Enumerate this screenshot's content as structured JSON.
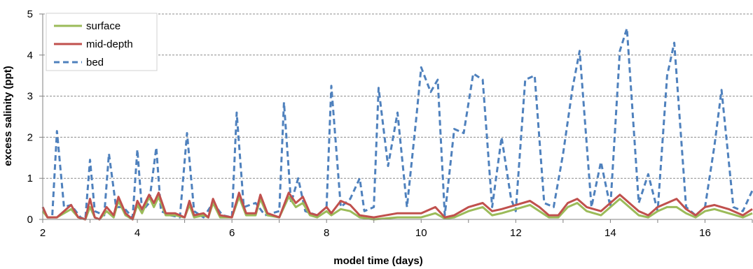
{
  "chart_data": {
    "type": "line",
    "title": "",
    "xlabel": "model time (days)",
    "ylabel": "excess salinity (ppt)",
    "xlim": [
      2,
      17
    ],
    "ylim": [
      0,
      5
    ],
    "x_ticks": [
      2,
      4,
      6,
      8,
      10,
      12,
      14,
      16
    ],
    "y_ticks": [
      0,
      1,
      2,
      3,
      4,
      5
    ],
    "grid": "horizontal dashed",
    "legend_position": "top-left",
    "series": [
      {
        "name": "surface",
        "color": "#9BBB59",
        "style": "solid",
        "points": [
          [
            2,
            0.2
          ],
          [
            2.1,
            0.05
          ],
          [
            2.3,
            0.05
          ],
          [
            2.6,
            0.25
          ],
          [
            2.75,
            0.05
          ],
          [
            2.9,
            0
          ],
          [
            3.0,
            0.3
          ],
          [
            3.1,
            0.05
          ],
          [
            3.2,
            0
          ],
          [
            3.35,
            0.2
          ],
          [
            3.5,
            0.05
          ],
          [
            3.6,
            0.45
          ],
          [
            3.75,
            0.1
          ],
          [
            3.9,
            0
          ],
          [
            4.0,
            0.35
          ],
          [
            4.1,
            0.15
          ],
          [
            4.25,
            0.55
          ],
          [
            4.35,
            0.3
          ],
          [
            4.45,
            0.55
          ],
          [
            4.6,
            0.1
          ],
          [
            4.8,
            0.1
          ],
          [
            5.0,
            0.05
          ],
          [
            5.1,
            0.35
          ],
          [
            5.2,
            0.05
          ],
          [
            5.4,
            0.1
          ],
          [
            5.5,
            0.05
          ],
          [
            5.6,
            0.4
          ],
          [
            5.75,
            0.05
          ],
          [
            6.0,
            0.05
          ],
          [
            6.15,
            0.55
          ],
          [
            6.3,
            0.1
          ],
          [
            6.5,
            0.1
          ],
          [
            6.6,
            0.5
          ],
          [
            6.75,
            0.1
          ],
          [
            7.0,
            0.05
          ],
          [
            7.2,
            0.55
          ],
          [
            7.35,
            0.3
          ],
          [
            7.5,
            0.4
          ],
          [
            7.65,
            0.1
          ],
          [
            7.8,
            0.05
          ],
          [
            8.0,
            0.2
          ],
          [
            8.1,
            0.1
          ],
          [
            8.3,
            0.25
          ],
          [
            8.5,
            0.2
          ],
          [
            8.7,
            0.05
          ],
          [
            9.0,
            0
          ],
          [
            9.5,
            0.05
          ],
          [
            10.0,
            0.05
          ],
          [
            10.3,
            0.15
          ],
          [
            10.5,
            0.02
          ],
          [
            10.7,
            0.05
          ],
          [
            11.0,
            0.2
          ],
          [
            11.3,
            0.3
          ],
          [
            11.5,
            0.1
          ],
          [
            11.7,
            0.15
          ],
          [
            12.0,
            0.25
          ],
          [
            12.3,
            0.35
          ],
          [
            12.5,
            0.2
          ],
          [
            12.7,
            0.05
          ],
          [
            12.9,
            0.05
          ],
          [
            13.1,
            0.3
          ],
          [
            13.3,
            0.4
          ],
          [
            13.5,
            0.2
          ],
          [
            13.8,
            0.1
          ],
          [
            14.0,
            0.3
          ],
          [
            14.2,
            0.5
          ],
          [
            14.4,
            0.3
          ],
          [
            14.6,
            0.1
          ],
          [
            14.8,
            0.05
          ],
          [
            15.0,
            0.2
          ],
          [
            15.2,
            0.3
          ],
          [
            15.4,
            0.3
          ],
          [
            15.6,
            0.15
          ],
          [
            15.8,
            0.05
          ],
          [
            16.0,
            0.2
          ],
          [
            16.2,
            0.25
          ],
          [
            16.5,
            0.15
          ],
          [
            16.8,
            0.05
          ],
          [
            17.0,
            0.15
          ]
        ]
      },
      {
        "name": "mid-depth",
        "color": "#C0504D",
        "style": "solid",
        "points": [
          [
            2,
            0.3
          ],
          [
            2.1,
            0.05
          ],
          [
            2.3,
            0.05
          ],
          [
            2.6,
            0.35
          ],
          [
            2.75,
            0.05
          ],
          [
            2.9,
            0
          ],
          [
            3.0,
            0.5
          ],
          [
            3.1,
            0.05
          ],
          [
            3.2,
            0
          ],
          [
            3.35,
            0.3
          ],
          [
            3.5,
            0.1
          ],
          [
            3.6,
            0.55
          ],
          [
            3.75,
            0.15
          ],
          [
            3.9,
            0
          ],
          [
            4.0,
            0.45
          ],
          [
            4.1,
            0.25
          ],
          [
            4.25,
            0.6
          ],
          [
            4.35,
            0.4
          ],
          [
            4.45,
            0.65
          ],
          [
            4.6,
            0.15
          ],
          [
            4.8,
            0.15
          ],
          [
            5.0,
            0.05
          ],
          [
            5.1,
            0.45
          ],
          [
            5.2,
            0.1
          ],
          [
            5.4,
            0.15
          ],
          [
            5.5,
            0.05
          ],
          [
            5.6,
            0.5
          ],
          [
            5.75,
            0.1
          ],
          [
            6.0,
            0.05
          ],
          [
            6.15,
            0.65
          ],
          [
            6.3,
            0.15
          ],
          [
            6.5,
            0.15
          ],
          [
            6.6,
            0.6
          ],
          [
            6.75,
            0.15
          ],
          [
            7.0,
            0.05
          ],
          [
            7.2,
            0.65
          ],
          [
            7.35,
            0.4
          ],
          [
            7.5,
            0.55
          ],
          [
            7.65,
            0.15
          ],
          [
            7.8,
            0.1
          ],
          [
            8.0,
            0.3
          ],
          [
            8.1,
            0.15
          ],
          [
            8.3,
            0.45
          ],
          [
            8.5,
            0.35
          ],
          [
            8.7,
            0.1
          ],
          [
            9.0,
            0.05
          ],
          [
            9.5,
            0.15
          ],
          [
            10.0,
            0.15
          ],
          [
            10.3,
            0.3
          ],
          [
            10.5,
            0.05
          ],
          [
            10.7,
            0.1
          ],
          [
            11.0,
            0.3
          ],
          [
            11.3,
            0.4
          ],
          [
            11.5,
            0.2
          ],
          [
            11.7,
            0.25
          ],
          [
            12.0,
            0.35
          ],
          [
            12.3,
            0.45
          ],
          [
            12.5,
            0.3
          ],
          [
            12.7,
            0.1
          ],
          [
            12.9,
            0.1
          ],
          [
            13.1,
            0.4
          ],
          [
            13.3,
            0.5
          ],
          [
            13.5,
            0.3
          ],
          [
            13.8,
            0.2
          ],
          [
            14.0,
            0.4
          ],
          [
            14.2,
            0.6
          ],
          [
            14.4,
            0.4
          ],
          [
            14.6,
            0.2
          ],
          [
            14.8,
            0.1
          ],
          [
            15.0,
            0.3
          ],
          [
            15.2,
            0.4
          ],
          [
            15.4,
            0.5
          ],
          [
            15.6,
            0.25
          ],
          [
            15.8,
            0.1
          ],
          [
            16.0,
            0.3
          ],
          [
            16.2,
            0.35
          ],
          [
            16.5,
            0.25
          ],
          [
            16.8,
            0.1
          ],
          [
            17.0,
            0.25
          ]
        ]
      },
      {
        "name": "bed",
        "color": "#4F81BD",
        "style": "dashed",
        "points": [
          [
            2,
            0.3
          ],
          [
            2.1,
            0.05
          ],
          [
            2.2,
            0.05
          ],
          [
            2.3,
            2.15
          ],
          [
            2.45,
            0.3
          ],
          [
            2.6,
            0.35
          ],
          [
            2.8,
            0.05
          ],
          [
            2.9,
            0
          ],
          [
            3.0,
            1.45
          ],
          [
            3.1,
            0.2
          ],
          [
            3.3,
            0.1
          ],
          [
            3.4,
            1.6
          ],
          [
            3.55,
            0.3
          ],
          [
            3.7,
            0.3
          ],
          [
            3.9,
            0.05
          ],
          [
            4.0,
            1.7
          ],
          [
            4.1,
            0.2
          ],
          [
            4.25,
            0.4
          ],
          [
            4.4,
            1.75
          ],
          [
            4.5,
            0.2
          ],
          [
            4.7,
            0.1
          ],
          [
            4.9,
            0.05
          ],
          [
            5.05,
            2.1
          ],
          [
            5.2,
            0.2
          ],
          [
            5.4,
            0.05
          ],
          [
            5.6,
            0.4
          ],
          [
            5.8,
            0.1
          ],
          [
            6.0,
            0.05
          ],
          [
            6.1,
            2.6
          ],
          [
            6.25,
            0.3
          ],
          [
            6.5,
            0.4
          ],
          [
            6.7,
            0.1
          ],
          [
            7.0,
            0.2
          ],
          [
            7.1,
            2.85
          ],
          [
            7.25,
            0.4
          ],
          [
            7.4,
            1.0
          ],
          [
            7.55,
            0.2
          ],
          [
            7.8,
            0.1
          ],
          [
            8.0,
            0.3
          ],
          [
            8.1,
            3.25
          ],
          [
            8.3,
            0.3
          ],
          [
            8.5,
            0.5
          ],
          [
            8.7,
            1.0
          ],
          [
            8.8,
            0.2
          ],
          [
            9.0,
            0.3
          ],
          [
            9.1,
            3.2
          ],
          [
            9.3,
            1.3
          ],
          [
            9.5,
            2.6
          ],
          [
            9.7,
            0.3
          ],
          [
            9.9,
            2.5
          ],
          [
            10.0,
            3.7
          ],
          [
            10.2,
            3.1
          ],
          [
            10.35,
            3.4
          ],
          [
            10.5,
            0.1
          ],
          [
            10.7,
            2.2
          ],
          [
            10.9,
            2.1
          ],
          [
            11.1,
            3.55
          ],
          [
            11.3,
            3.4
          ],
          [
            11.5,
            0.3
          ],
          [
            11.7,
            2.0
          ],
          [
            11.9,
            0.5
          ],
          [
            12.0,
            0.2
          ],
          [
            12.2,
            3.4
          ],
          [
            12.4,
            3.5
          ],
          [
            12.6,
            0.4
          ],
          [
            12.8,
            0.3
          ],
          [
            13.0,
            1.6
          ],
          [
            13.2,
            3.2
          ],
          [
            13.35,
            4.1
          ],
          [
            13.6,
            0.3
          ],
          [
            13.8,
            1.4
          ],
          [
            14.0,
            0.3
          ],
          [
            14.2,
            4.1
          ],
          [
            14.35,
            4.65
          ],
          [
            14.6,
            0.4
          ],
          [
            14.8,
            1.1
          ],
          [
            15.0,
            0.2
          ],
          [
            15.2,
            3.5
          ],
          [
            15.35,
            4.3
          ],
          [
            15.6,
            0.3
          ],
          [
            15.8,
            0.1
          ],
          [
            16.0,
            0.3
          ],
          [
            16.2,
            1.8
          ],
          [
            16.35,
            3.15
          ],
          [
            16.6,
            0.3
          ],
          [
            16.8,
            0.2
          ],
          [
            17.0,
            0.7
          ]
        ]
      }
    ]
  }
}
